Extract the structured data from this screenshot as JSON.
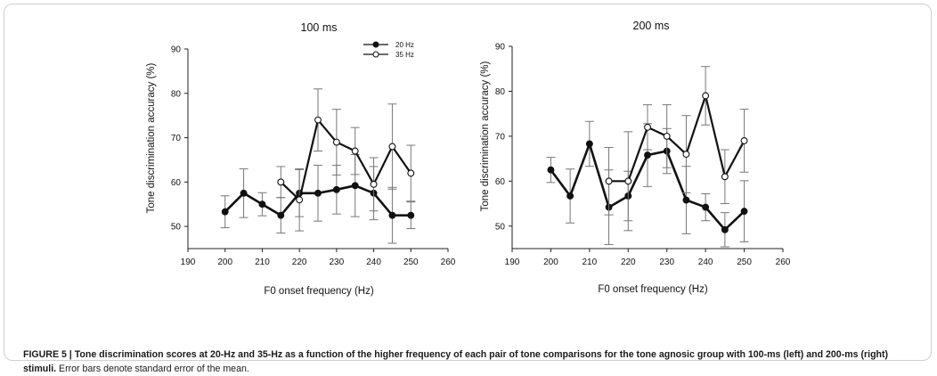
{
  "figure": {
    "caption_bold": "FIGURE 5 | Tone discrimination scores at 20-Hz and 35-Hz as a function of the higher frequency of each pair of tone comparisons for the tone agnosic group with 100-ms (left) and 200-ms (right) stimuli.",
    "caption_rest": " Error bars denote standard error of the mean."
  },
  "chart_data": [
    {
      "type": "line",
      "title": "100 ms",
      "xlabel": "F0 onset frequency (Hz)",
      "ylabel": "Tone discrimination accuracy (%)",
      "xlim": [
        190,
        260
      ],
      "ylim": [
        45,
        90
      ],
      "xticks": [
        190,
        200,
        210,
        220,
        230,
        240,
        250,
        260
      ],
      "yticks": [
        50,
        60,
        70,
        80,
        90
      ],
      "legend_position": "top-right",
      "series": [
        {
          "name": "20 Hz",
          "marker": "filled",
          "x": [
            200,
            205,
            210,
            215,
            220,
            225,
            230,
            235,
            240,
            245,
            250
          ],
          "y": [
            53.3,
            57.5,
            55,
            52.5,
            57.5,
            57.5,
            58.3,
            59.2,
            57.5,
            52.5,
            52.5
          ],
          "err": [
            3.6,
            5.5,
            2.6,
            4,
            5.3,
            6.3,
            5.5,
            7,
            6,
            6.3,
            3
          ]
        },
        {
          "name": "35 Hz",
          "marker": "open",
          "x": [
            215,
            220,
            225,
            230,
            235,
            240,
            245,
            250
          ],
          "y": [
            60,
            56,
            74,
            69,
            67,
            59.5,
            68,
            62
          ],
          "err": [
            3.5,
            7,
            7,
            7.4,
            5.3,
            6,
            9.6,
            6.3
          ]
        }
      ]
    },
    {
      "type": "line",
      "title": "200 ms",
      "xlabel": "F0 onset frequency (Hz)",
      "ylabel": "Tone discrimination accuracy (%)",
      "xlim": [
        190,
        260
      ],
      "ylim": [
        45,
        90
      ],
      "xticks": [
        190,
        200,
        210,
        220,
        230,
        240,
        250,
        260
      ],
      "yticks": [
        50,
        60,
        70,
        80,
        90
      ],
      "series": [
        {
          "name": "20 Hz",
          "marker": "filled",
          "x": [
            200,
            205,
            210,
            215,
            220,
            225,
            230,
            235,
            240,
            245,
            250
          ],
          "y": [
            62.5,
            56.7,
            68.3,
            54.2,
            56.7,
            65.8,
            66.7,
            55.8,
            54.2,
            49.2,
            53.3
          ],
          "err": [
            2.8,
            6,
            5,
            8.3,
            5.5,
            7,
            5,
            7.5,
            3,
            3.8,
            6.8
          ]
        },
        {
          "name": "35 Hz",
          "marker": "open",
          "x": [
            215,
            220,
            225,
            230,
            235,
            240,
            245,
            250
          ],
          "y": [
            60,
            60,
            72,
            70,
            66,
            79,
            61,
            69
          ],
          "err": [
            7.5,
            11,
            5,
            7,
            8.6,
            6.5,
            6,
            7
          ]
        }
      ]
    }
  ]
}
